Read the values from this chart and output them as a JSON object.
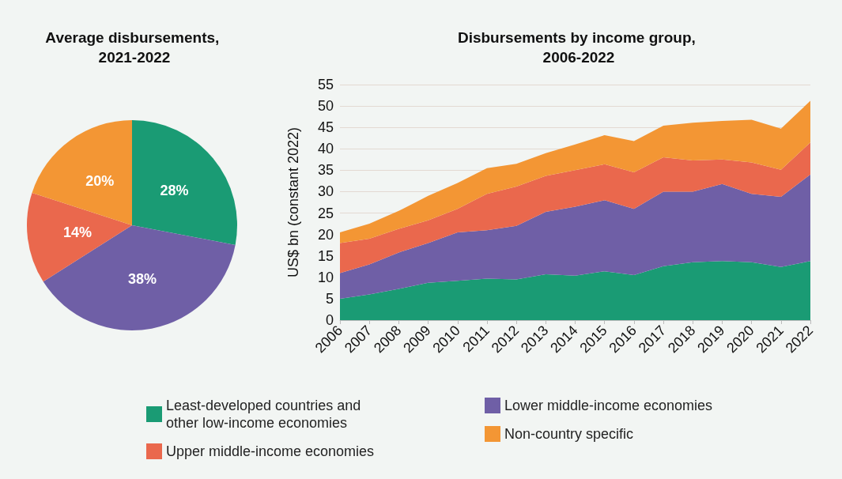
{
  "chart_data": [
    {
      "type": "pie",
      "title": "Average disbursements, 2021-2022",
      "categories": [
        null,
        null,
        null,
        null
      ],
      "values": [
        28,
        38,
        14,
        20
      ],
      "colors": [
        "#1a9b74",
        "#6f5fa6",
        "#ea684d",
        "#f39634"
      ],
      "value_labels": [
        "28%",
        "38%",
        "14%",
        "20%"
      ]
    },
    {
      "type": "area",
      "title": "Disbursements by income group, 2006-2022",
      "ylabel": "US$ bn (constant 2022)",
      "stacked": true,
      "categories": [
        "2006",
        "2007",
        "2008",
        "2009",
        "2010",
        "2011",
        "2012",
        "2013",
        "2014",
        "2015",
        "2016",
        "2017",
        "2018",
        "2019",
        "2020",
        "2021",
        "2022"
      ],
      "series": [
        {
          "name": "Least-developed countries and other low-income economies",
          "color": "#1a9b74",
          "values": [
            5,
            6,
            7.3,
            8.7,
            9.2,
            9.7,
            9.5,
            10.7,
            10.4,
            11.4,
            10.5,
            12.6,
            13.5,
            13.8,
            13.5,
            12.4,
            13.8
          ]
        },
        {
          "name": "Lower middle-income economies",
          "color": "#6f5fa6",
          "values": [
            6,
            7,
            8.5,
            9.3,
            11.3,
            11.3,
            12.5,
            14.6,
            16.1,
            16.6,
            15.5,
            17.4,
            16.5,
            18,
            16,
            16.4,
            20.2
          ]
        },
        {
          "name": "Upper middle-income economies",
          "color": "#ea684d",
          "values": [
            7,
            6,
            5.5,
            5.3,
            5.5,
            8.5,
            9.2,
            8.4,
            8.5,
            8.4,
            8.5,
            8,
            7.3,
            5.7,
            7.3,
            6.3,
            7.5
          ]
        },
        {
          "name": "Non-country specific",
          "color": "#f39634",
          "values": [
            2.5,
            3.5,
            4.2,
            5.7,
            6,
            6,
            5.3,
            5.3,
            6,
            6.8,
            7.3,
            7.4,
            8.8,
            9,
            10,
            9.6,
            9.7
          ]
        }
      ],
      "ylim": [
        0,
        55
      ],
      "yticks": [
        0,
        5,
        10,
        15,
        20,
        25,
        30,
        35,
        40,
        45,
        50,
        55
      ],
      "grid": "y",
      "legend": "bottom"
    }
  ]
}
